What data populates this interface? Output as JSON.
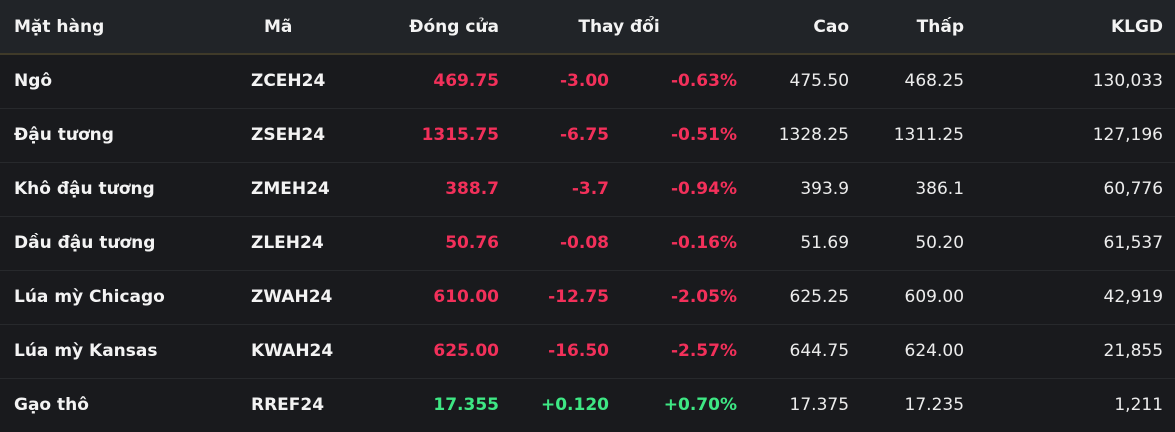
{
  "colors": {
    "down": "#f2305a",
    "up": "#3ee784",
    "header_background": "#212428",
    "row_background": "#191a1d",
    "header_divider": "#3f3a29"
  },
  "table": {
    "columns": {
      "item": "Mặt hàng",
      "code": "Mã",
      "close": "Đóng cửa",
      "change": "Thay đổi",
      "high": "Cao",
      "low": "Thấp",
      "volume": "KLGD"
    },
    "rows": [
      {
        "item": "Ngô",
        "code": "ZCEH24",
        "close": "469.75",
        "change": "-3.00",
        "change_pct": "-0.63%",
        "high": "475.50",
        "low": "468.25",
        "volume": "130,033",
        "direction": "down"
      },
      {
        "item": "Đậu tương",
        "code": "ZSEH24",
        "close": "1315.75",
        "change": "-6.75",
        "change_pct": "-0.51%",
        "high": "1328.25",
        "low": "1311.25",
        "volume": "127,196",
        "direction": "down"
      },
      {
        "item": "Khô đậu tương",
        "code": "ZMEH24",
        "close": "388.7",
        "change": "-3.7",
        "change_pct": "-0.94%",
        "high": "393.9",
        "low": "386.1",
        "volume": "60,776",
        "direction": "down"
      },
      {
        "item": "Dầu đậu tương",
        "code": "ZLEH24",
        "close": "50.76",
        "change": "-0.08",
        "change_pct": "-0.16%",
        "high": "51.69",
        "low": "50.20",
        "volume": "61,537",
        "direction": "down"
      },
      {
        "item": "Lúa mỳ Chicago",
        "code": "ZWAH24",
        "close": "610.00",
        "change": "-12.75",
        "change_pct": "-2.05%",
        "high": "625.25",
        "low": "609.00",
        "volume": "42,919",
        "direction": "down"
      },
      {
        "item": "Lúa mỳ Kansas",
        "code": "KWAH24",
        "close": "625.00",
        "change": "-16.50",
        "change_pct": "-2.57%",
        "high": "644.75",
        "low": "624.00",
        "volume": "21,855",
        "direction": "down"
      },
      {
        "item": "Gạo thô",
        "code": "RREF24",
        "close": "17.355",
        "change": "+0.120",
        "change_pct": "+0.70%",
        "high": "17.375",
        "low": "17.235",
        "volume": "1,211",
        "direction": "up"
      }
    ]
  }
}
